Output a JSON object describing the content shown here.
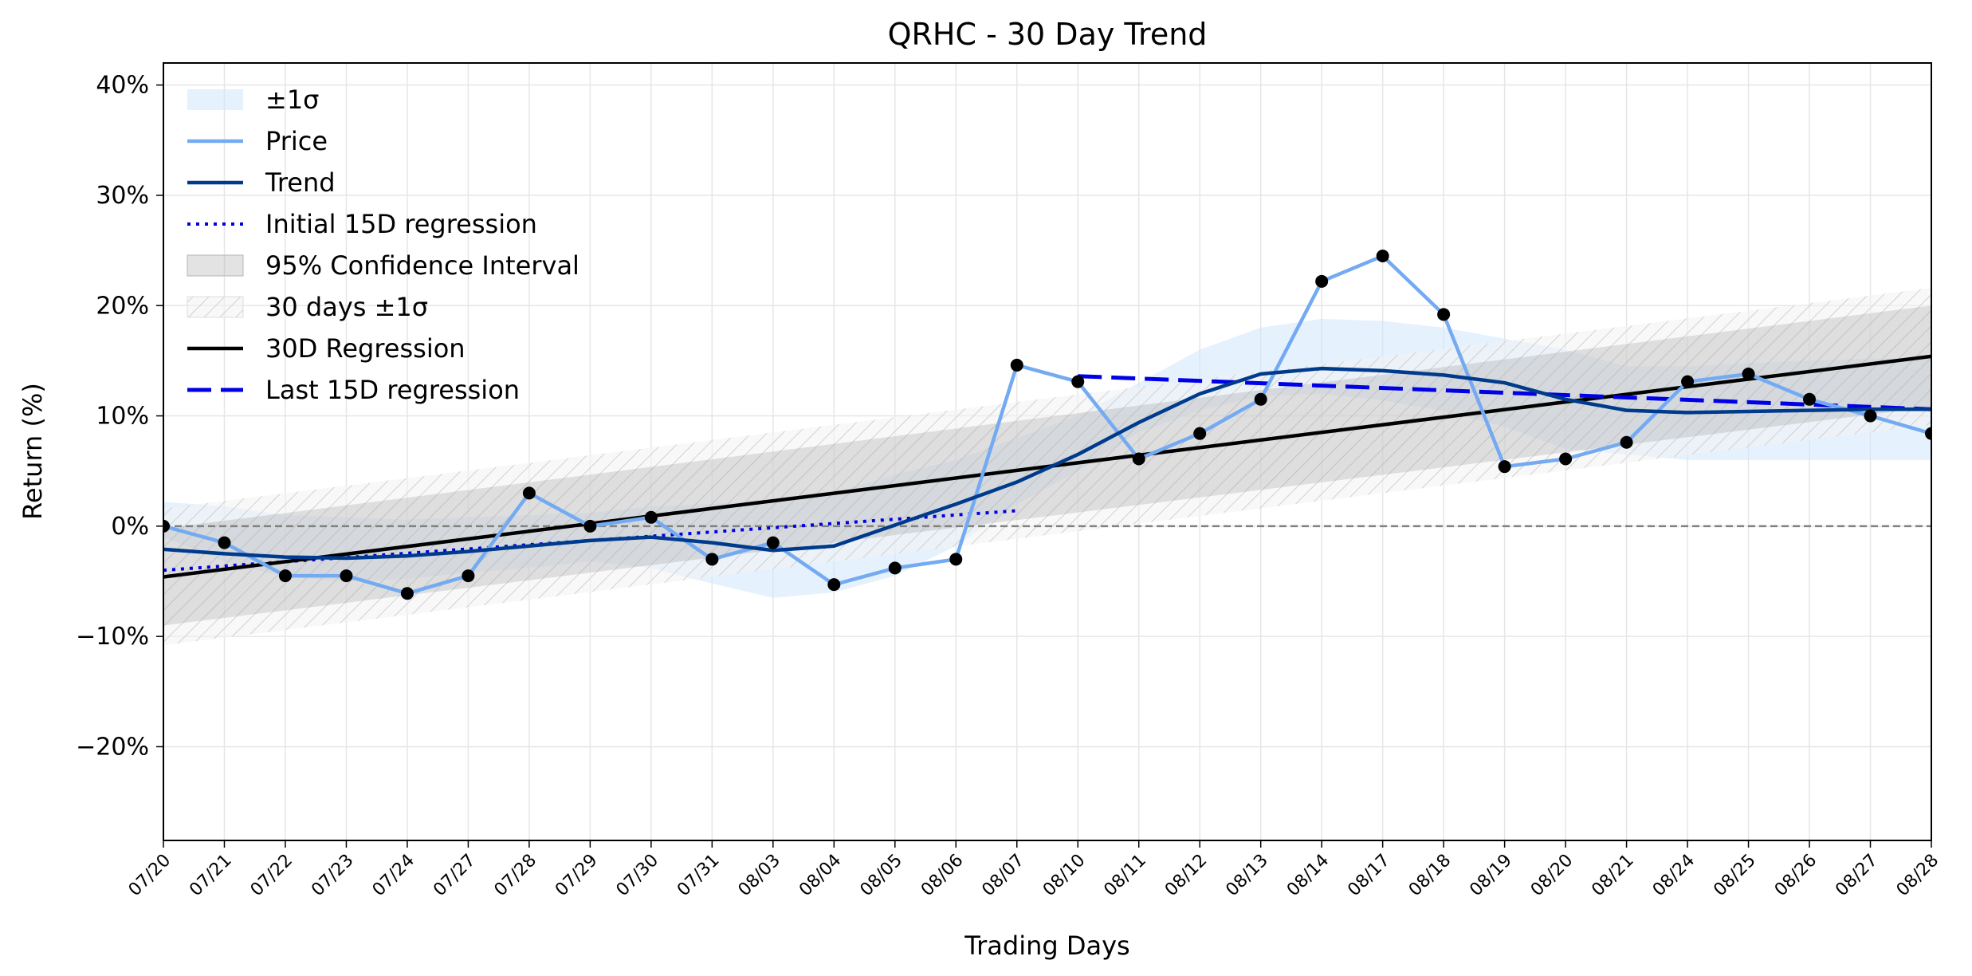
{
  "colors": {
    "price": "#73aaf2",
    "trend": "#003a8c",
    "regression_early": "#0000e6",
    "regression_30d": "#000000",
    "regression_late": "#0000e6",
    "band_sigma": "#cfe5fb",
    "band_ci": "#999999",
    "band_30d": "#bbbbbb",
    "markers": "#000000",
    "zero_line": "#808080"
  },
  "chart_data": {
    "type": "line",
    "title": "QRHC - 30 Day Trend",
    "xlabel": "Trading Days",
    "ylabel": "Return (%)",
    "ylim": [
      -28.5,
      42
    ],
    "yticks": [
      -20,
      -10,
      0,
      10,
      20,
      30,
      40
    ],
    "ytick_labels": [
      "−20%",
      "−10%",
      "0%",
      "10%",
      "20%",
      "30%",
      "40%"
    ],
    "grid": true,
    "legend_position": "top-left",
    "categories": [
      "07/20",
      "07/21",
      "07/22",
      "07/23",
      "07/24",
      "07/27",
      "07/28",
      "07/29",
      "07/30",
      "07/31",
      "08/03",
      "08/04",
      "08/05",
      "08/06",
      "08/07",
      "08/10",
      "08/11",
      "08/12",
      "08/13",
      "08/14",
      "08/17",
      "08/18",
      "08/19",
      "08/20",
      "08/21",
      "08/24",
      "08/25",
      "08/26",
      "08/27",
      "08/28"
    ],
    "series": [
      {
        "name": "Price",
        "style": "line",
        "values": [
          0.0,
          -1.5,
          -4.5,
          -4.5,
          -6.1,
          -4.5,
          3.0,
          0.0,
          0.8,
          -3.0,
          -1.5,
          -5.3,
          -3.8,
          -3.0,
          14.6,
          13.1,
          6.1,
          8.4,
          11.5,
          22.2,
          24.5,
          19.2,
          5.4,
          6.1,
          7.6,
          13.1,
          13.8,
          11.5,
          10.0,
          8.4
        ]
      },
      {
        "name": "Trend",
        "style": "line",
        "values": [
          -2.1,
          -2.5,
          -2.8,
          -2.9,
          -2.7,
          -2.3,
          -1.8,
          -1.3,
          -1.0,
          -1.5,
          -2.2,
          -1.8,
          0.1,
          2.0,
          4.0,
          6.5,
          9.4,
          12.0,
          13.8,
          14.3,
          14.1,
          13.7,
          13.0,
          11.5,
          10.5,
          10.3,
          10.4,
          10.5,
          10.6,
          10.6
        ]
      },
      {
        "name": "Initial 15D regression",
        "style": "dotted",
        "x_range": [
          0,
          14
        ],
        "endpoints": [
          -4.0,
          1.4
        ]
      },
      {
        "name": "30D Regression",
        "style": "solid",
        "x_range": [
          0,
          29
        ],
        "endpoints": [
          -4.6,
          15.4
        ]
      },
      {
        "name": "Last 15D regression",
        "style": "dashed",
        "x_range": [
          15,
          29
        ],
        "endpoints": [
          13.6,
          10.6
        ]
      }
    ],
    "bands": [
      {
        "name": "±1σ",
        "lower": [
          -1.0,
          -3.2,
          -4.6,
          -5.0,
          -4.8,
          -4.2,
          -3.8,
          -3.2,
          -3.8,
          -5.2,
          -6.5,
          -6.0,
          -4.5,
          -1.8,
          2.0,
          5.0,
          8.5,
          10.5,
          11.8,
          12.0,
          11.4,
          10.4,
          9.0,
          7.0,
          6.5,
          6.0,
          6.0,
          6.0,
          6.0,
          6.0
        ],
        "upper": [
          2.2,
          1.8,
          1.0,
          0.8,
          0.6,
          0.8,
          1.0,
          1.2,
          1.8,
          2.0,
          2.4,
          3.0,
          4.7,
          6.0,
          8.0,
          10.0,
          13.0,
          16.0,
          18.0,
          18.8,
          18.6,
          18.0,
          17.0,
          16.0,
          14.5,
          14.5,
          14.8,
          15.0,
          15.2,
          15.2
        ]
      },
      {
        "name": "95% Confidence Interval",
        "x_range": [
          0,
          29
        ],
        "lower_endpoints": [
          -9.0,
          10.8
        ],
        "upper_endpoints": [
          -0.2,
          20.0
        ]
      },
      {
        "name": "30 days ±1σ",
        "x_range": [
          0,
          29
        ],
        "lower_endpoints": [
          -10.8,
          9.2
        ],
        "upper_endpoints": [
          1.6,
          21.6
        ]
      }
    ],
    "legend": [
      "±1σ",
      "Price",
      "Trend",
      "Initial 15D regression",
      "95% Confidence Interval",
      "30 days ±1σ",
      "30D Regression",
      "Last 15D regression"
    ]
  }
}
